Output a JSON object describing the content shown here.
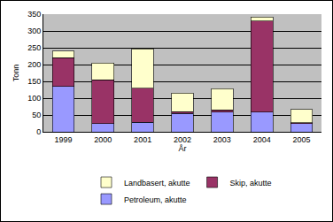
{
  "chart_data": {
    "type": "bar",
    "stacked": true,
    "x_label": "År",
    "y_label": "Tonn",
    "categories": [
      "1999",
      "2000",
      "2001",
      "2002",
      "2003",
      "2004",
      "2005"
    ],
    "series": [
      {
        "name": "Petroleum, akutte",
        "color": "#9999ff",
        "values": [
          135,
          25,
          28,
          55,
          58,
          58,
          25
        ]
      },
      {
        "name": "Skip, akutte",
        "color": "#993366",
        "values": [
          85,
          130,
          102,
          5,
          7,
          272,
          2
        ]
      },
      {
        "name": "Landbasert, akutte",
        "color": "#ffffcc",
        "values": [
          20,
          50,
          117,
          55,
          63,
          12,
          40
        ]
      }
    ],
    "ylim": [
      0,
      350
    ],
    "yticks": [
      0,
      50,
      100,
      150,
      200,
      250,
      300,
      350
    ],
    "grid": true,
    "legend": "bottom"
  }
}
